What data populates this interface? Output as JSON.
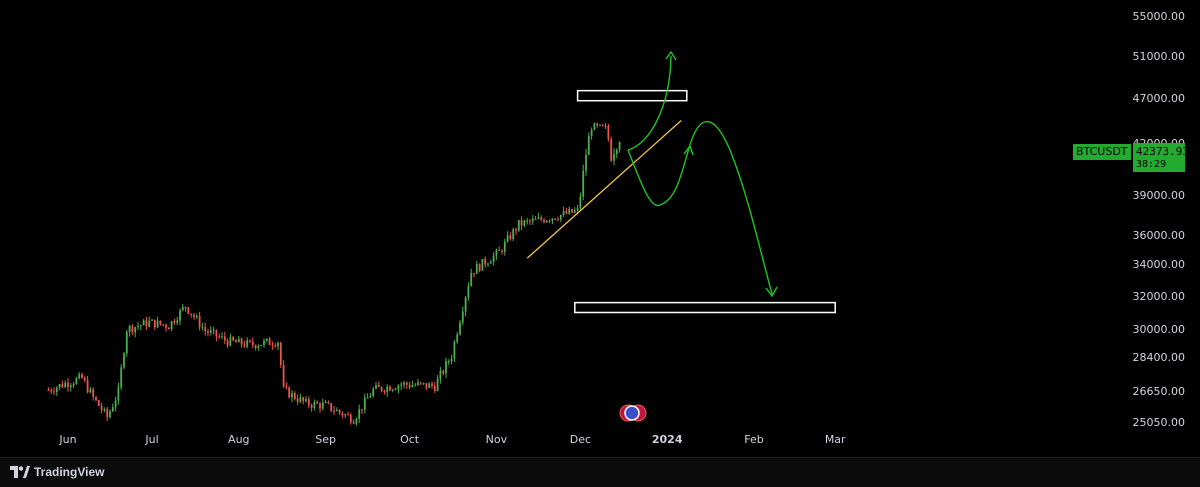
{
  "app": {
    "brand": "TradingView"
  },
  "symbol": {
    "name": "BTCUSDT",
    "last_price": "42373.93",
    "countdown": "38:29"
  },
  "chart_data": {
    "type": "candlestick",
    "title": "",
    "price_axis": {
      "ticks": [
        "55000.00",
        "51000.00",
        "47000.00",
        "42000.00",
        "39000.00",
        "36000.00",
        "34000.00",
        "32000.00",
        "30000.00",
        "28400.00",
        "26650.00",
        "25050.00"
      ]
    },
    "time_axis": {
      "ticks": [
        "Jun",
        "Jul",
        "Aug",
        "Sep",
        "Oct",
        "Nov",
        "Dec",
        "2024",
        "Feb",
        "Mar"
      ]
    },
    "price_path": [
      {
        "date": "2023-05-25",
        "close": 26700
      },
      {
        "date": "2023-06-01",
        "close": 27100
      },
      {
        "date": "2023-06-06",
        "close": 27300
      },
      {
        "date": "2023-06-10",
        "close": 26300
      },
      {
        "date": "2023-06-15",
        "close": 25300
      },
      {
        "date": "2023-06-19",
        "close": 26600
      },
      {
        "date": "2023-06-22",
        "close": 30000
      },
      {
        "date": "2023-06-30",
        "close": 30400
      },
      {
        "date": "2023-07-07",
        "close": 30200
      },
      {
        "date": "2023-07-13",
        "close": 31400
      },
      {
        "date": "2023-07-20",
        "close": 29900
      },
      {
        "date": "2023-07-28",
        "close": 29300
      },
      {
        "date": "2023-08-05",
        "close": 29100
      },
      {
        "date": "2023-08-15",
        "close": 29300
      },
      {
        "date": "2023-08-17",
        "close": 26700
      },
      {
        "date": "2023-08-25",
        "close": 26000
      },
      {
        "date": "2023-09-01",
        "close": 25900
      },
      {
        "date": "2023-09-11",
        "close": 25200
      },
      {
        "date": "2023-09-18",
        "close": 26700
      },
      {
        "date": "2023-09-28",
        "close": 27000
      },
      {
        "date": "2023-10-10",
        "close": 26900
      },
      {
        "date": "2023-10-16",
        "close": 28500
      },
      {
        "date": "2023-10-23",
        "close": 33500
      },
      {
        "date": "2023-11-02",
        "close": 34800
      },
      {
        "date": "2023-11-09",
        "close": 36800
      },
      {
        "date": "2023-11-20",
        "close": 37300
      },
      {
        "date": "2023-11-30",
        "close": 37800
      },
      {
        "date": "2023-12-05",
        "close": 43800
      },
      {
        "date": "2023-12-10",
        "close": 43600
      },
      {
        "date": "2023-12-12",
        "close": 41300
      },
      {
        "date": "2023-12-15",
        "close": 42373
      }
    ],
    "annotations": {
      "resistance_zone": {
        "from": "2023-11-30",
        "to": "2024-01-08",
        "price_low": 46700,
        "price_high": 47700
      },
      "support_zone": {
        "from": "2023-11-29",
        "to": "2024-03-01",
        "price_low": 31000,
        "price_high": 31600
      },
      "trendline": {
        "start": {
          "date": "2023-11-12",
          "price": 34400
        },
        "end": {
          "date": "2024-01-06",
          "price": 44500
        }
      }
    }
  }
}
